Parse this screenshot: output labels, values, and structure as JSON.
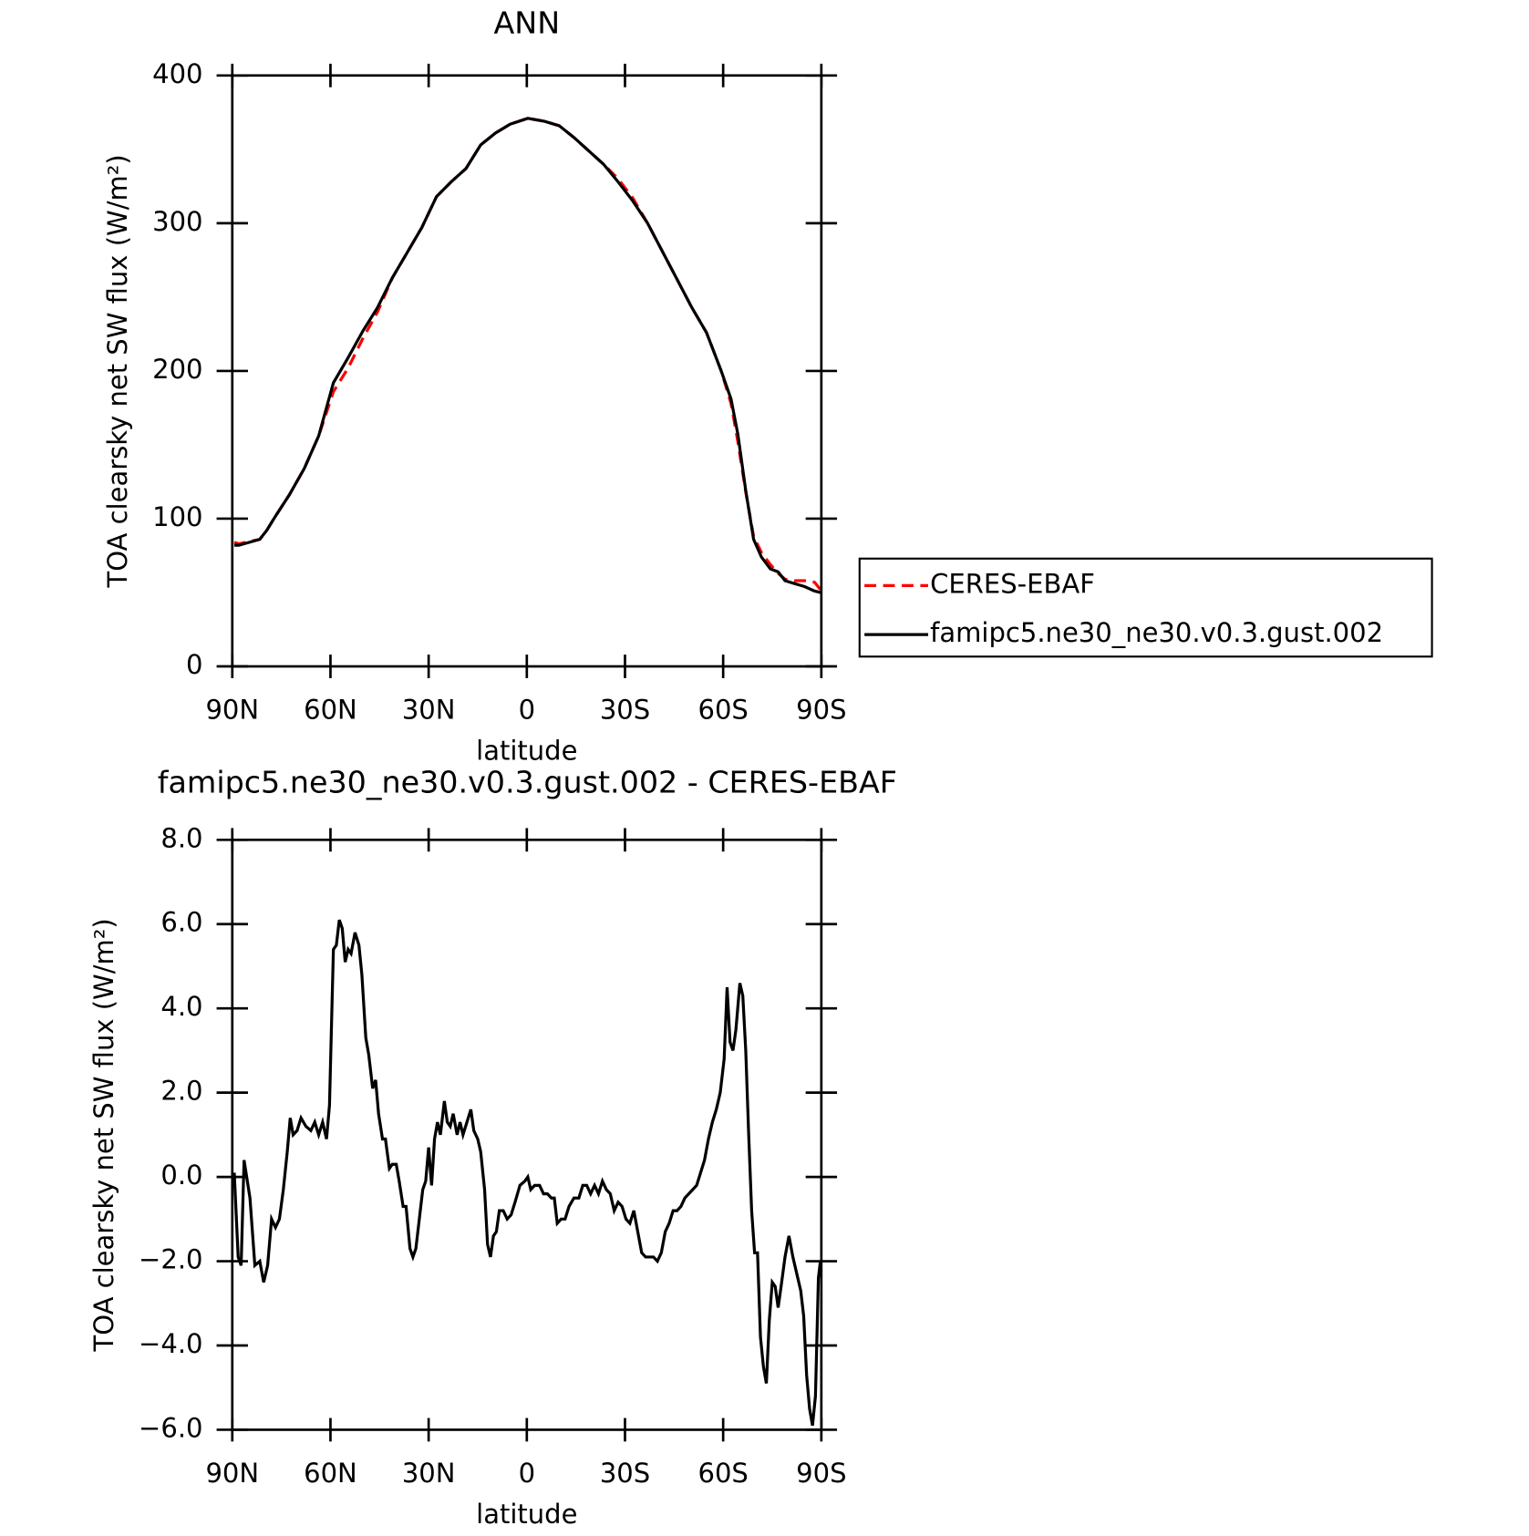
{
  "chart_data": [
    {
      "type": "line",
      "title": "ANN",
      "xlabel": "latitude",
      "ylabel": "TOA clearsky net SW flux (W/m²)",
      "x": [
        89.4,
        88.0,
        81.6,
        79.5,
        77.0,
        72.6,
        68.0,
        63.6,
        59.1,
        54.6,
        50.1,
        45.6,
        41.1,
        36.6,
        32.1,
        27.6,
        23.1,
        18.6,
        14.1,
        9.6,
        5.1,
        -0.3,
        -5.4,
        -9.9,
        -14.4,
        -18.9,
        -23.4,
        -27.9,
        -32.4,
        -36.9,
        -41.4,
        -45.9,
        -50.4,
        -54.9,
        -59.4,
        -62.4,
        -64.5,
        -66.9,
        -69.3,
        -71.7,
        -74.4,
        -76.8,
        -78.9,
        -81.9,
        -84.9,
        -87.9,
        -89.7
      ],
      "series": [
        {
          "name": "CERES-EBAF",
          "color": "#ff0000",
          "linestyle": "dashed",
          "values": [
            84,
            83,
            86,
            92,
            101,
            116,
            134,
            156,
            186,
            202,
            222,
            240,
            263,
            280,
            297,
            318,
            328,
            337,
            353,
            361,
            367,
            371,
            369,
            366,
            358,
            349,
            340,
            330,
            317,
            300,
            281,
            262,
            243,
            226,
            200,
            178,
            152,
            118,
            88,
            77,
            69,
            63,
            59,
            58,
            58,
            57,
            52
          ]
        },
        {
          "name": "famipc5.ne30_ne30.v0.3.gust.002",
          "color": "#000000",
          "linestyle": "solid",
          "values": [
            82,
            82,
            86,
            92,
            101,
            116,
            134,
            156,
            192,
            209,
            227,
            243,
            263,
            280,
            297,
            318,
            328,
            337,
            353,
            361,
            367,
            371,
            369,
            366,
            358,
            349,
            340,
            328,
            315,
            300,
            281,
            262,
            243,
            226,
            200,
            181,
            157,
            119,
            86,
            74,
            66,
            64,
            58,
            56,
            54,
            51,
            50
          ]
        }
      ],
      "xlim": [
        90,
        -90
      ],
      "xticks": [
        {
          "value": 90,
          "label": "90N"
        },
        {
          "value": 60,
          "label": "60N"
        },
        {
          "value": 30,
          "label": "30N"
        },
        0,
        {
          "value": -30,
          "label": "30S"
        },
        {
          "value": -60,
          "label": "60S"
        },
        {
          "value": -90,
          "label": "90S"
        }
      ],
      "ylim": [
        0,
        400
      ],
      "yticks": [
        0,
        100,
        200,
        300,
        400
      ],
      "legend": "right"
    },
    {
      "type": "line",
      "title": "famipc5.ne30_ne30.v0.3.gust.002 - CERES-EBAF",
      "xlabel": "latitude",
      "ylabel": "TOA clearsky net SW flux (W/m²)",
      "x": [
        89.4,
        88.2,
        87.3,
        86.4,
        84.6,
        83.1,
        81.6,
        80.4,
        79.2,
        78.0,
        76.8,
        75.6,
        74.4,
        73.2,
        72.3,
        71.4,
        70.2,
        69.0,
        67.5,
        66.0,
        64.8,
        63.6,
        62.4,
        61.2,
        60.3,
        59.1,
        58.2,
        57.3,
        56.4,
        55.5,
        54.6,
        53.7,
        52.5,
        51.3,
        50.4,
        49.2,
        48.3,
        47.1,
        46.2,
        45.3,
        44.1,
        43.2,
        42.0,
        41.1,
        39.9,
        39.0,
        37.8,
        36.9,
        35.7,
        34.8,
        33.9,
        32.7,
        31.8,
        30.9,
        30.0,
        29.1,
        28.2,
        27.3,
        26.4,
        25.2,
        24.3,
        23.4,
        22.5,
        21.3,
        20.4,
        19.5,
        18.3,
        17.1,
        16.2,
        15.0,
        14.1,
        12.9,
        12.0,
        11.1,
        10.2,
        9.3,
        8.4,
        7.2,
        6.0,
        4.8,
        3.6,
        2.1,
        0.6,
        -0.3,
        -1.2,
        -2.4,
        -3.9,
        -5.1,
        -6.3,
        -7.5,
        -8.4,
        -9.3,
        -10.5,
        -11.7,
        -12.9,
        -14.4,
        -15.9,
        -17.1,
        -18.3,
        -19.5,
        -20.7,
        -21.9,
        -23.1,
        -24.3,
        -25.5,
        -26.7,
        -27.9,
        -29.1,
        -30.3,
        -31.5,
        -32.7,
        -33.9,
        -35.1,
        -36.3,
        -37.5,
        -38.7,
        -39.9,
        -41.1,
        -42.3,
        -43.5,
        -44.7,
        -45.9,
        -47.1,
        -48.3,
        -49.5,
        -50.7,
        -51.9,
        -53.1,
        -54.3,
        -55.5,
        -56.7,
        -57.9,
        -59.1,
        -60.3,
        -61.2,
        -62.1,
        -63.0,
        -63.9,
        -65.1,
        -66.0,
        -66.9,
        -67.8,
        -68.7,
        -69.6,
        -70.5,
        -71.4,
        -72.3,
        -73.2,
        -74.1,
        -75.0,
        -75.9,
        -76.8,
        -77.7,
        -78.9,
        -80.1,
        -81.3,
        -82.5,
        -83.7,
        -84.6,
        -85.5,
        -86.4,
        -87.3,
        -88.2,
        -89.1,
        -89.7
      ],
      "values": [
        0.1,
        -1.9,
        -2.1,
        0.4,
        -0.5,
        -2.1,
        -2.0,
        -2.5,
        -2.1,
        -1.0,
        -1.2,
        -1.0,
        -0.3,
        0.6,
        1.4,
        1.0,
        1.1,
        1.4,
        1.2,
        1.1,
        1.3,
        1.0,
        1.3,
        0.9,
        1.7,
        5.4,
        5.5,
        6.1,
        5.9,
        5.1,
        5.4,
        5.3,
        5.8,
        5.5,
        4.8,
        3.3,
        2.9,
        2.1,
        2.3,
        1.5,
        0.9,
        0.9,
        0.2,
        0.3,
        0.3,
        -0.1,
        -0.7,
        -0.7,
        -1.7,
        -1.9,
        -1.7,
        -0.9,
        -0.3,
        -0.1,
        0.7,
        -0.2,
        0.9,
        1.3,
        1.0,
        1.8,
        1.3,
        1.2,
        1.5,
        1.0,
        1.3,
        1.0,
        1.3,
        1.6,
        1.1,
        0.9,
        0.6,
        -0.3,
        -1.6,
        -1.9,
        -1.4,
        -1.3,
        -0.8,
        -0.8,
        -1.0,
        -0.9,
        -0.6,
        -0.2,
        -0.1,
        0.0,
        -0.3,
        -0.2,
        -0.2,
        -0.4,
        -0.4,
        -0.5,
        -0.5,
        -1.1,
        -1.0,
        -1.0,
        -0.7,
        -0.5,
        -0.5,
        -0.2,
        -0.2,
        -0.4,
        -0.2,
        -0.4,
        -0.1,
        -0.3,
        -0.4,
        -0.8,
        -0.6,
        -0.7,
        -1.0,
        -1.1,
        -0.8,
        -1.3,
        -1.8,
        -1.9,
        -1.9,
        -1.9,
        -2.0,
        -1.8,
        -1.3,
        -1.1,
        -0.8,
        -0.8,
        -0.7,
        -0.5,
        -0.4,
        -0.3,
        -0.2,
        0.1,
        0.4,
        0.9,
        1.3,
        1.6,
        2.0,
        2.8,
        4.5,
        3.2,
        3.0,
        3.5,
        4.6,
        4.3,
        3.0,
        1.0,
        -0.8,
        -1.8,
        -1.8,
        -3.8,
        -4.5,
        -4.9,
        -3.4,
        -2.5,
        -2.6,
        -3.1,
        -2.6,
        -1.9,
        -1.4,
        -1.9,
        -2.3,
        -2.7,
        -3.3,
        -4.7,
        -5.5,
        -5.9,
        -5.2,
        -2.4,
        -2.0
      ],
      "color": "#000000",
      "linestyle": "solid",
      "xlim": [
        90,
        -90
      ],
      "xticks": [
        {
          "value": 90,
          "label": "90N"
        },
        {
          "value": 60,
          "label": "60N"
        },
        {
          "value": 30,
          "label": "30N"
        },
        0,
        {
          "value": -30,
          "label": "30S"
        },
        {
          "value": -60,
          "label": "60S"
        },
        {
          "value": -90,
          "label": "90S"
        }
      ],
      "ylim": [
        -6,
        8
      ],
      "yticks": [
        {
          "value": -6,
          "label": "−6.0"
        },
        {
          "value": -4,
          "label": "−4.0"
        },
        {
          "value": -2,
          "label": "−2.0"
        },
        {
          "value": 0,
          "label": "0.0"
        },
        {
          "value": 2,
          "label": "2.0"
        },
        {
          "value": 4,
          "label": "4.0"
        },
        {
          "value": 6,
          "label": "6.0"
        },
        {
          "value": 8,
          "label": "8.0"
        }
      ]
    }
  ]
}
